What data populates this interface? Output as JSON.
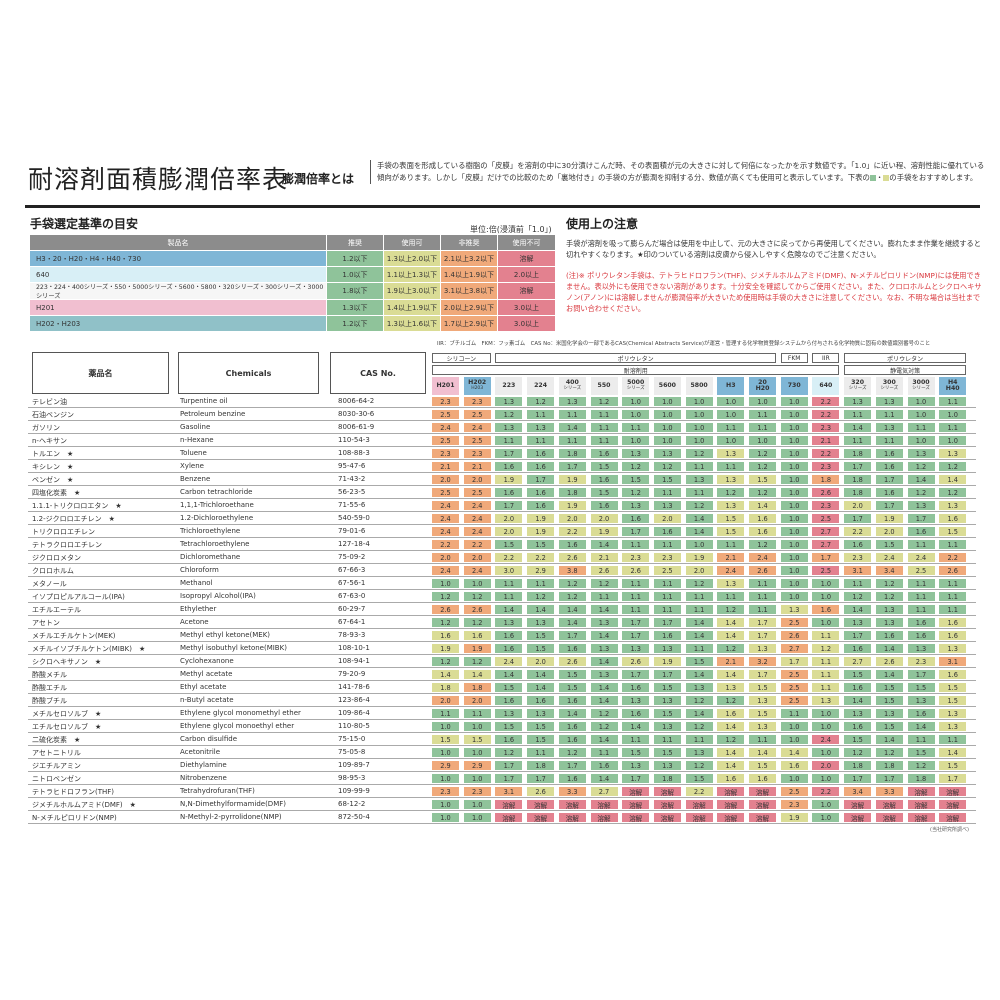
{
  "header": {
    "title": "耐溶剤面積膨潤倍率表",
    "subtitle": "膨潤倍率とは",
    "intro_before": "手袋の表面を形成している樹脂の「皮膜」を溶剤の中に30分漬けこんだ時、その表面積が元の大きさに対して何倍になったかを示す数値です。「1.0」に近い程、溶剤性能に優れている傾向があります。しかし「皮膜」だけでの比較のため「裏地付き」の手袋の方が膨潤を抑制する分、数値が高くても使用可と表示しています。下表の",
    "intro_sep": "・",
    "intro_after": "の手袋をおすすめします。"
  },
  "selection": {
    "title": "手袋選定基準の目安",
    "unit": "単位:倍(浸漬前「1.0」)",
    "headers": [
      "製品名",
      "推奨",
      "使用可",
      "非推奨",
      "使用不可"
    ],
    "rows": [
      {
        "name": "H3・20・H20・H4・H40・730",
        "vals": [
          "1.2以下",
          "1.3以上2.0以下",
          "2.1以上3.2以下",
          "溶解"
        ]
      },
      {
        "name": "640",
        "vals": [
          "1.0以下",
          "1.1以上1.3以下",
          "1.4以上1.9以下",
          "2.0以上"
        ]
      },
      {
        "name": "223・224・400シリーズ・550・5000シリーズ・5600・5800・320シリーズ・300シリーズ・3000シリーズ",
        "vals": [
          "1.8以下",
          "1.9以上3.0以下",
          "3.1以上3.8以下",
          "溶解"
        ]
      },
      {
        "name": "H201",
        "vals": [
          "1.3以下",
          "1.4以上1.9以下",
          "2.0以上2.9以下",
          "3.0以上"
        ]
      },
      {
        "name": "H202・H203",
        "vals": [
          "1.2以下",
          "1.3以上1.6以下",
          "1.7以上2.9以下",
          "3.0以上"
        ]
      }
    ]
  },
  "notes": {
    "title": "使用上の注意",
    "text1": "手袋が溶剤を吸って膨らんだ場合は使用を中止して、元の大きさに戻ってから再使用してください。膨れたまま作業を継続すると切れやすくなります。★印のついている溶剤は皮膚から侵入しやすく危険なのでご注意ください。",
    "text2": "(注)※ ポリウレタン手袋は、テトラヒドロフラン(THF)、ジメチルホルムアミド(DMF)、N-メチルピロリドン(NMP)には使用できません。表以外にも使用できない溶剤があります。十分安全を確認してからご使用ください。また、クロロホルムとシクロヘキサノン(アノン)には溶解しませんが膨潤倍率が大きいため使用時は手袋の大きさに注意してください。なお、不明な場合は当社までお問い合わせください。"
  },
  "table": {
    "legend_note": "IIR：ブチルゴム　FKM：フッ素ゴム　CAS No：米国化学会の一部であるCAS(Chemical Abstracts Service)が運営・管理する化学物質登録システムから付与される化学物質に固有の数値識別番号のこと",
    "col_name": "薬品名",
    "col_chem": "Chemicals",
    "col_cas": "CAS No.",
    "groups": {
      "silicone": "シリコーン",
      "pu1": "ポリウレタン",
      "fkm": "FKM",
      "iir": "IIR",
      "pu2": "ポリウレタン",
      "solvent": "耐溶剤用",
      "antistatic": "静電気対策"
    },
    "products": [
      [
        "H201",
        ""
      ],
      [
        "H202",
        "H203"
      ],
      [
        "223",
        ""
      ],
      [
        "224",
        ""
      ],
      [
        "400",
        "シリーズ"
      ],
      [
        "550",
        ""
      ],
      [
        "5000",
        "シリーズ"
      ],
      [
        "5600",
        ""
      ],
      [
        "5800",
        ""
      ],
      [
        "H3",
        ""
      ],
      [
        "20",
        "H20"
      ],
      [
        "730",
        ""
      ],
      [
        "640",
        ""
      ],
      [
        "320",
        "シリーズ"
      ],
      [
        "300",
        "シリーズ"
      ],
      [
        "3000",
        "シリーズ"
      ],
      [
        "H4",
        "H40"
      ]
    ],
    "rows": [
      {
        "ja": "テレビン油",
        "en": "Turpentine oil",
        "cas": "8006-64-2",
        "v": [
          "2.3",
          "2.3",
          "1.3",
          "1.2",
          "1.3",
          "1.2",
          "1.0",
          "1.0",
          "1.0",
          "1.0",
          "1.0",
          "1.0",
          "2.2",
          "1.3",
          "1.3",
          "1.0",
          "1.1"
        ]
      },
      {
        "ja": "石油ベンジン",
        "en": "Petroleum benzine",
        "cas": "8030-30-6",
        "v": [
          "2.5",
          "2.5",
          "1.2",
          "1.1",
          "1.1",
          "1.1",
          "1.0",
          "1.0",
          "1.0",
          "1.0",
          "1.1",
          "1.0",
          "2.2",
          "1.1",
          "1.1",
          "1.0",
          "1.0"
        ]
      },
      {
        "ja": "ガソリン",
        "en": "Gasoline",
        "cas": "8006-61-9",
        "v": [
          "2.4",
          "2.4",
          "1.3",
          "1.3",
          "1.4",
          "1.1",
          "1.1",
          "1.0",
          "1.0",
          "1.1",
          "1.1",
          "1.0",
          "2.3",
          "1.4",
          "1.3",
          "1.1",
          "1.1"
        ]
      },
      {
        "ja": "n-ヘキサン",
        "en": "n-Hexane",
        "cas": "110-54-3",
        "v": [
          "2.5",
          "2.5",
          "1.1",
          "1.1",
          "1.1",
          "1.1",
          "1.0",
          "1.0",
          "1.0",
          "1.0",
          "1.0",
          "1.0",
          "2.1",
          "1.1",
          "1.1",
          "1.0",
          "1.0"
        ]
      },
      {
        "ja": "トルエン　★",
        "en": "Toluene",
        "cas": "108-88-3",
        "v": [
          "2.3",
          "2.3",
          "1.7",
          "1.6",
          "1.8",
          "1.6",
          "1.3",
          "1.3",
          "1.2",
          "1.3",
          "1.2",
          "1.0",
          "2.2",
          "1.8",
          "1.6",
          "1.3",
          "1.3"
        ]
      },
      {
        "ja": "キシレン　★",
        "en": "Xylene",
        "cas": "95-47-6",
        "v": [
          "2.1",
          "2.1",
          "1.6",
          "1.6",
          "1.7",
          "1.5",
          "1.2",
          "1.2",
          "1.1",
          "1.1",
          "1.2",
          "1.0",
          "2.3",
          "1.7",
          "1.6",
          "1.2",
          "1.2"
        ]
      },
      {
        "ja": "ベンゼン　★",
        "en": "Benzene",
        "cas": "71-43-2",
        "v": [
          "2.0",
          "2.0",
          "1.9",
          "1.7",
          "1.9",
          "1.6",
          "1.5",
          "1.5",
          "1.3",
          "1.3",
          "1.5",
          "1.0",
          "1.8",
          "1.8",
          "1.7",
          "1.4",
          "1.4"
        ]
      },
      {
        "ja": "四塩化炭素　★",
        "en": "Carbon tetrachloride",
        "cas": "56-23-5",
        "v": [
          "2.5",
          "2.5",
          "1.6",
          "1.6",
          "1.8",
          "1.5",
          "1.2",
          "1.1",
          "1.1",
          "1.2",
          "1.2",
          "1.0",
          "2.6",
          "1.8",
          "1.6",
          "1.2",
          "1.2"
        ]
      },
      {
        "ja": "1.1.1-トリクロロエタン　★",
        "en": "1,1,1-Trichloroethane",
        "cas": "71-55-6",
        "v": [
          "2.4",
          "2.4",
          "1.7",
          "1.6",
          "1.9",
          "1.6",
          "1.3",
          "1.3",
          "1.2",
          "1.3",
          "1.4",
          "1.0",
          "2.3",
          "2.0",
          "1.7",
          "1.3",
          "1.3"
        ]
      },
      {
        "ja": "1.2-ジクロロエチレン　★",
        "en": "1.2-Dichloroethylene",
        "cas": "540-59-0",
        "v": [
          "2.4",
          "2.4",
          "2.0",
          "1.9",
          "2.0",
          "2.0",
          "1.6",
          "2.0",
          "1.4",
          "1.5",
          "1.6",
          "1.0",
          "2.5",
          "1.7",
          "1.9",
          "1.7",
          "1.6"
        ]
      },
      {
        "ja": "トリクロロエチレン",
        "en": "Trichloroethylene",
        "cas": "79-01-6",
        "v": [
          "2.4",
          "2.4",
          "2.0",
          "1.9",
          "2.2",
          "1.9",
          "1.7",
          "1.6",
          "1.4",
          "1.5",
          "1.6",
          "1.0",
          "2.7",
          "2.2",
          "2.0",
          "1.6",
          "1.5"
        ]
      },
      {
        "ja": "テトラクロロエチレン",
        "en": "Tetrachloroethylene",
        "cas": "127-18-4",
        "v": [
          "2.2",
          "2.2",
          "1.5",
          "1.5",
          "1.6",
          "1.4",
          "1.1",
          "1.1",
          "1.0",
          "1.1",
          "1.2",
          "1.0",
          "2.7",
          "1.6",
          "1.5",
          "1.1",
          "1.1"
        ]
      },
      {
        "ja": "ジクロロメタン",
        "en": "Dichloromethane",
        "cas": "75-09-2",
        "v": [
          "2.0",
          "2.0",
          "2.2",
          "2.2",
          "2.6",
          "2.1",
          "2.3",
          "2.3",
          "1.9",
          "2.1",
          "2.4",
          "1.0",
          "1.7",
          "2.3",
          "2.4",
          "2.4",
          "2.2"
        ]
      },
      {
        "ja": "クロロホルム",
        "en": "Chloroform",
        "cas": "67-66-3",
        "v": [
          "2.4",
          "2.4",
          "3.0",
          "2.9",
          "3.8",
          "2.6",
          "2.6",
          "2.5",
          "2.0",
          "2.4",
          "2.6",
          "1.0",
          "2.5",
          "3.1",
          "3.4",
          "2.5",
          "2.6"
        ]
      },
      {
        "ja": "メタノール",
        "en": "Methanol",
        "cas": "67-56-1",
        "v": [
          "1.0",
          "1.0",
          "1.1",
          "1.1",
          "1.2",
          "1.2",
          "1.1",
          "1.1",
          "1.2",
          "1.3",
          "1.1",
          "1.0",
          "1.0",
          "1.1",
          "1.2",
          "1.1",
          "1.1"
        ]
      },
      {
        "ja": "イソプロピルアルコール(IPA)",
        "en": "Isopropyl Alcohol(IPA)",
        "cas": "67-63-0",
        "v": [
          "1.2",
          "1.2",
          "1.1",
          "1.2",
          "1.2",
          "1.1",
          "1.1",
          "1.1",
          "1.1",
          "1.1",
          "1.1",
          "1.0",
          "1.0",
          "1.2",
          "1.2",
          "1.1",
          "1.1"
        ]
      },
      {
        "ja": "エチルエーテル",
        "en": "Ethylether",
        "cas": "60-29-7",
        "v": [
          "2.6",
          "2.6",
          "1.4",
          "1.4",
          "1.4",
          "1.4",
          "1.1",
          "1.1",
          "1.1",
          "1.2",
          "1.1",
          "1.3",
          "1.6",
          "1.4",
          "1.3",
          "1.1",
          "1.1"
        ]
      },
      {
        "ja": "アセトン",
        "en": "Acetone",
        "cas": "67-64-1",
        "v": [
          "1.2",
          "1.2",
          "1.3",
          "1.3",
          "1.4",
          "1.3",
          "1.7",
          "1.7",
          "1.4",
          "1.4",
          "1.7",
          "2.5",
          "1.0",
          "1.3",
          "1.3",
          "1.6",
          "1.6"
        ]
      },
      {
        "ja": "メチルエチルケトン(MEK)",
        "en": "Methyl ethyl ketone(MEK)",
        "cas": "78-93-3",
        "v": [
          "1.6",
          "1.6",
          "1.6",
          "1.5",
          "1.7",
          "1.4",
          "1.7",
          "1.6",
          "1.4",
          "1.4",
          "1.7",
          "2.6",
          "1.1",
          "1.7",
          "1.6",
          "1.6",
          "1.6"
        ]
      },
      {
        "ja": "メチルイソブチルケトン(MIBK)　★",
        "en": "Methyl isobuthyl ketone(MIBK)",
        "cas": "108-10-1",
        "v": [
          "1.9",
          "1.9",
          "1.6",
          "1.5",
          "1.6",
          "1.3",
          "1.3",
          "1.3",
          "1.1",
          "1.2",
          "1.3",
          "2.7",
          "1.2",
          "1.6",
          "1.4",
          "1.3",
          "1.3"
        ]
      },
      {
        "ja": "シクロヘキサノン　★",
        "en": "Cyclohexanone",
        "cas": "108-94-1",
        "v": [
          "1.2",
          "1.2",
          "2.4",
          "2.0",
          "2.6",
          "1.4",
          "2.6",
          "1.9",
          "1.5",
          "2.1",
          "3.2",
          "1.7",
          "1.1",
          "2.7",
          "2.6",
          "2.3",
          "3.1"
        ]
      },
      {
        "ja": "酢酸メチル",
        "en": "Methyl acetate",
        "cas": "79-20-9",
        "v": [
          "1.4",
          "1.4",
          "1.4",
          "1.4",
          "1.5",
          "1.3",
          "1.7",
          "1.7",
          "1.4",
          "1.4",
          "1.7",
          "2.5",
          "1.1",
          "1.5",
          "1.4",
          "1.7",
          "1.6"
        ]
      },
      {
        "ja": "酢酸エチル",
        "en": "Ethyl acetate",
        "cas": "141-78-6",
        "v": [
          "1.8",
          "1.8",
          "1.5",
          "1.4",
          "1.5",
          "1.4",
          "1.6",
          "1.5",
          "1.3",
          "1.3",
          "1.5",
          "2.5",
          "1.1",
          "1.6",
          "1.5",
          "1.5",
          "1.5"
        ]
      },
      {
        "ja": "酢酸ブチル",
        "en": "n-Butyl acetate",
        "cas": "123-86-4",
        "v": [
          "2.0",
          "2.0",
          "1.6",
          "1.6",
          "1.6",
          "1.4",
          "1.3",
          "1.3",
          "1.2",
          "1.2",
          "1.3",
          "2.5",
          "1.3",
          "1.4",
          "1.5",
          "1.3",
          "1.5"
        ]
      },
      {
        "ja": "メチルセロソルブ　★",
        "en": "Ethylene glycol monomethyl ether",
        "cas": "109-86-4",
        "v": [
          "1.1",
          "1.1",
          "1.3",
          "1.3",
          "1.4",
          "1.2",
          "1.6",
          "1.5",
          "1.4",
          "1.6",
          "1.5",
          "1.1",
          "1.0",
          "1.3",
          "1.3",
          "1.6",
          "1.3"
        ]
      },
      {
        "ja": "エチルセロソルブ　★",
        "en": "Ethylene glycol monoethyl ether",
        "cas": "110-80-5",
        "v": [
          "1.0",
          "1.0",
          "1.5",
          "1.5",
          "1.6",
          "1.2",
          "1.4",
          "1.3",
          "1.2",
          "1.4",
          "1.3",
          "1.0",
          "1.0",
          "1.6",
          "1.5",
          "1.4",
          "1.3"
        ]
      },
      {
        "ja": "二硫化炭素　★",
        "en": "Carbon disulfide",
        "cas": "75-15-0",
        "v": [
          "1.5",
          "1.5",
          "1.6",
          "1.5",
          "1.6",
          "1.4",
          "1.1",
          "1.1",
          "1.1",
          "1.2",
          "1.1",
          "1.0",
          "2.4",
          "1.5",
          "1.4",
          "1.1",
          "1.1"
        ]
      },
      {
        "ja": "アセトニトリル",
        "en": "Acetonitrile",
        "cas": "75-05-8",
        "v": [
          "1.0",
          "1.0",
          "1.2",
          "1.1",
          "1.2",
          "1.1",
          "1.5",
          "1.5",
          "1.3",
          "1.4",
          "1.4",
          "1.4",
          "1.0",
          "1.2",
          "1.2",
          "1.5",
          "1.4"
        ]
      },
      {
        "ja": "ジエチルアミン",
        "en": "Diethylamine",
        "cas": "109-89-7",
        "v": [
          "2.9",
          "2.9",
          "1.7",
          "1.8",
          "1.7",
          "1.6",
          "1.3",
          "1.3",
          "1.2",
          "1.4",
          "1.5",
          "1.6",
          "2.0",
          "1.8",
          "1.8",
          "1.2",
          "1.5"
        ]
      },
      {
        "ja": "ニトロベンゼン",
        "en": "Nitrobenzene",
        "cas": "98-95-3",
        "v": [
          "1.0",
          "1.0",
          "1.7",
          "1.7",
          "1.6",
          "1.4",
          "1.7",
          "1.8",
          "1.5",
          "1.6",
          "1.6",
          "1.0",
          "1.0",
          "1.7",
          "1.7",
          "1.8",
          "1.7"
        ]
      },
      {
        "ja": "テトラヒドロフラン(THF)",
        "en": "Tetrahydrofuran(THF)",
        "cas": "109-99-9",
        "v": [
          "2.3",
          "2.3",
          "3.1",
          "2.6",
          "3.3",
          "2.7",
          "溶解",
          "溶解",
          "2.2",
          "溶解",
          "溶解",
          "2.5",
          "2.2",
          "3.4",
          "3.3",
          "溶解",
          "溶解"
        ]
      },
      {
        "ja": "ジメチルホルムアミド(DMF)　★",
        "en": "N,N-Dimethylformamide(DMF)",
        "cas": "68-12-2",
        "v": [
          "1.0",
          "1.0",
          "溶解",
          "溶解",
          "溶解",
          "溶解",
          "溶解",
          "溶解",
          "溶解",
          "溶解",
          "溶解",
          "2.3",
          "1.0",
          "溶解",
          "溶解",
          "溶解",
          "溶解"
        ]
      },
      {
        "ja": "N-メチルピロリドン(NMP)",
        "en": "N-Methyl-2-pyrrolidone(NMP)",
        "cas": "872-50-4",
        "v": [
          "1.0",
          "1.0",
          "溶解",
          "溶解",
          "溶解",
          "溶解",
          "溶解",
          "溶解",
          "溶解",
          "溶解",
          "溶解",
          "1.9",
          "1.0",
          "溶解",
          "溶解",
          "溶解",
          "溶解"
        ]
      }
    ],
    "footnote": "(当社研究所調べ)"
  },
  "colors": {
    "recommended": "#8fc39a",
    "usable": "#dadc95",
    "not_recommended": "#f0a97a",
    "unusable": "#e3818f",
    "blue": "#7fb6d6",
    "light_blue": "#d8eff6",
    "pink": "#f1bfd0",
    "teal": "#90c1c8",
    "header_gray": "#8c8c8c"
  }
}
